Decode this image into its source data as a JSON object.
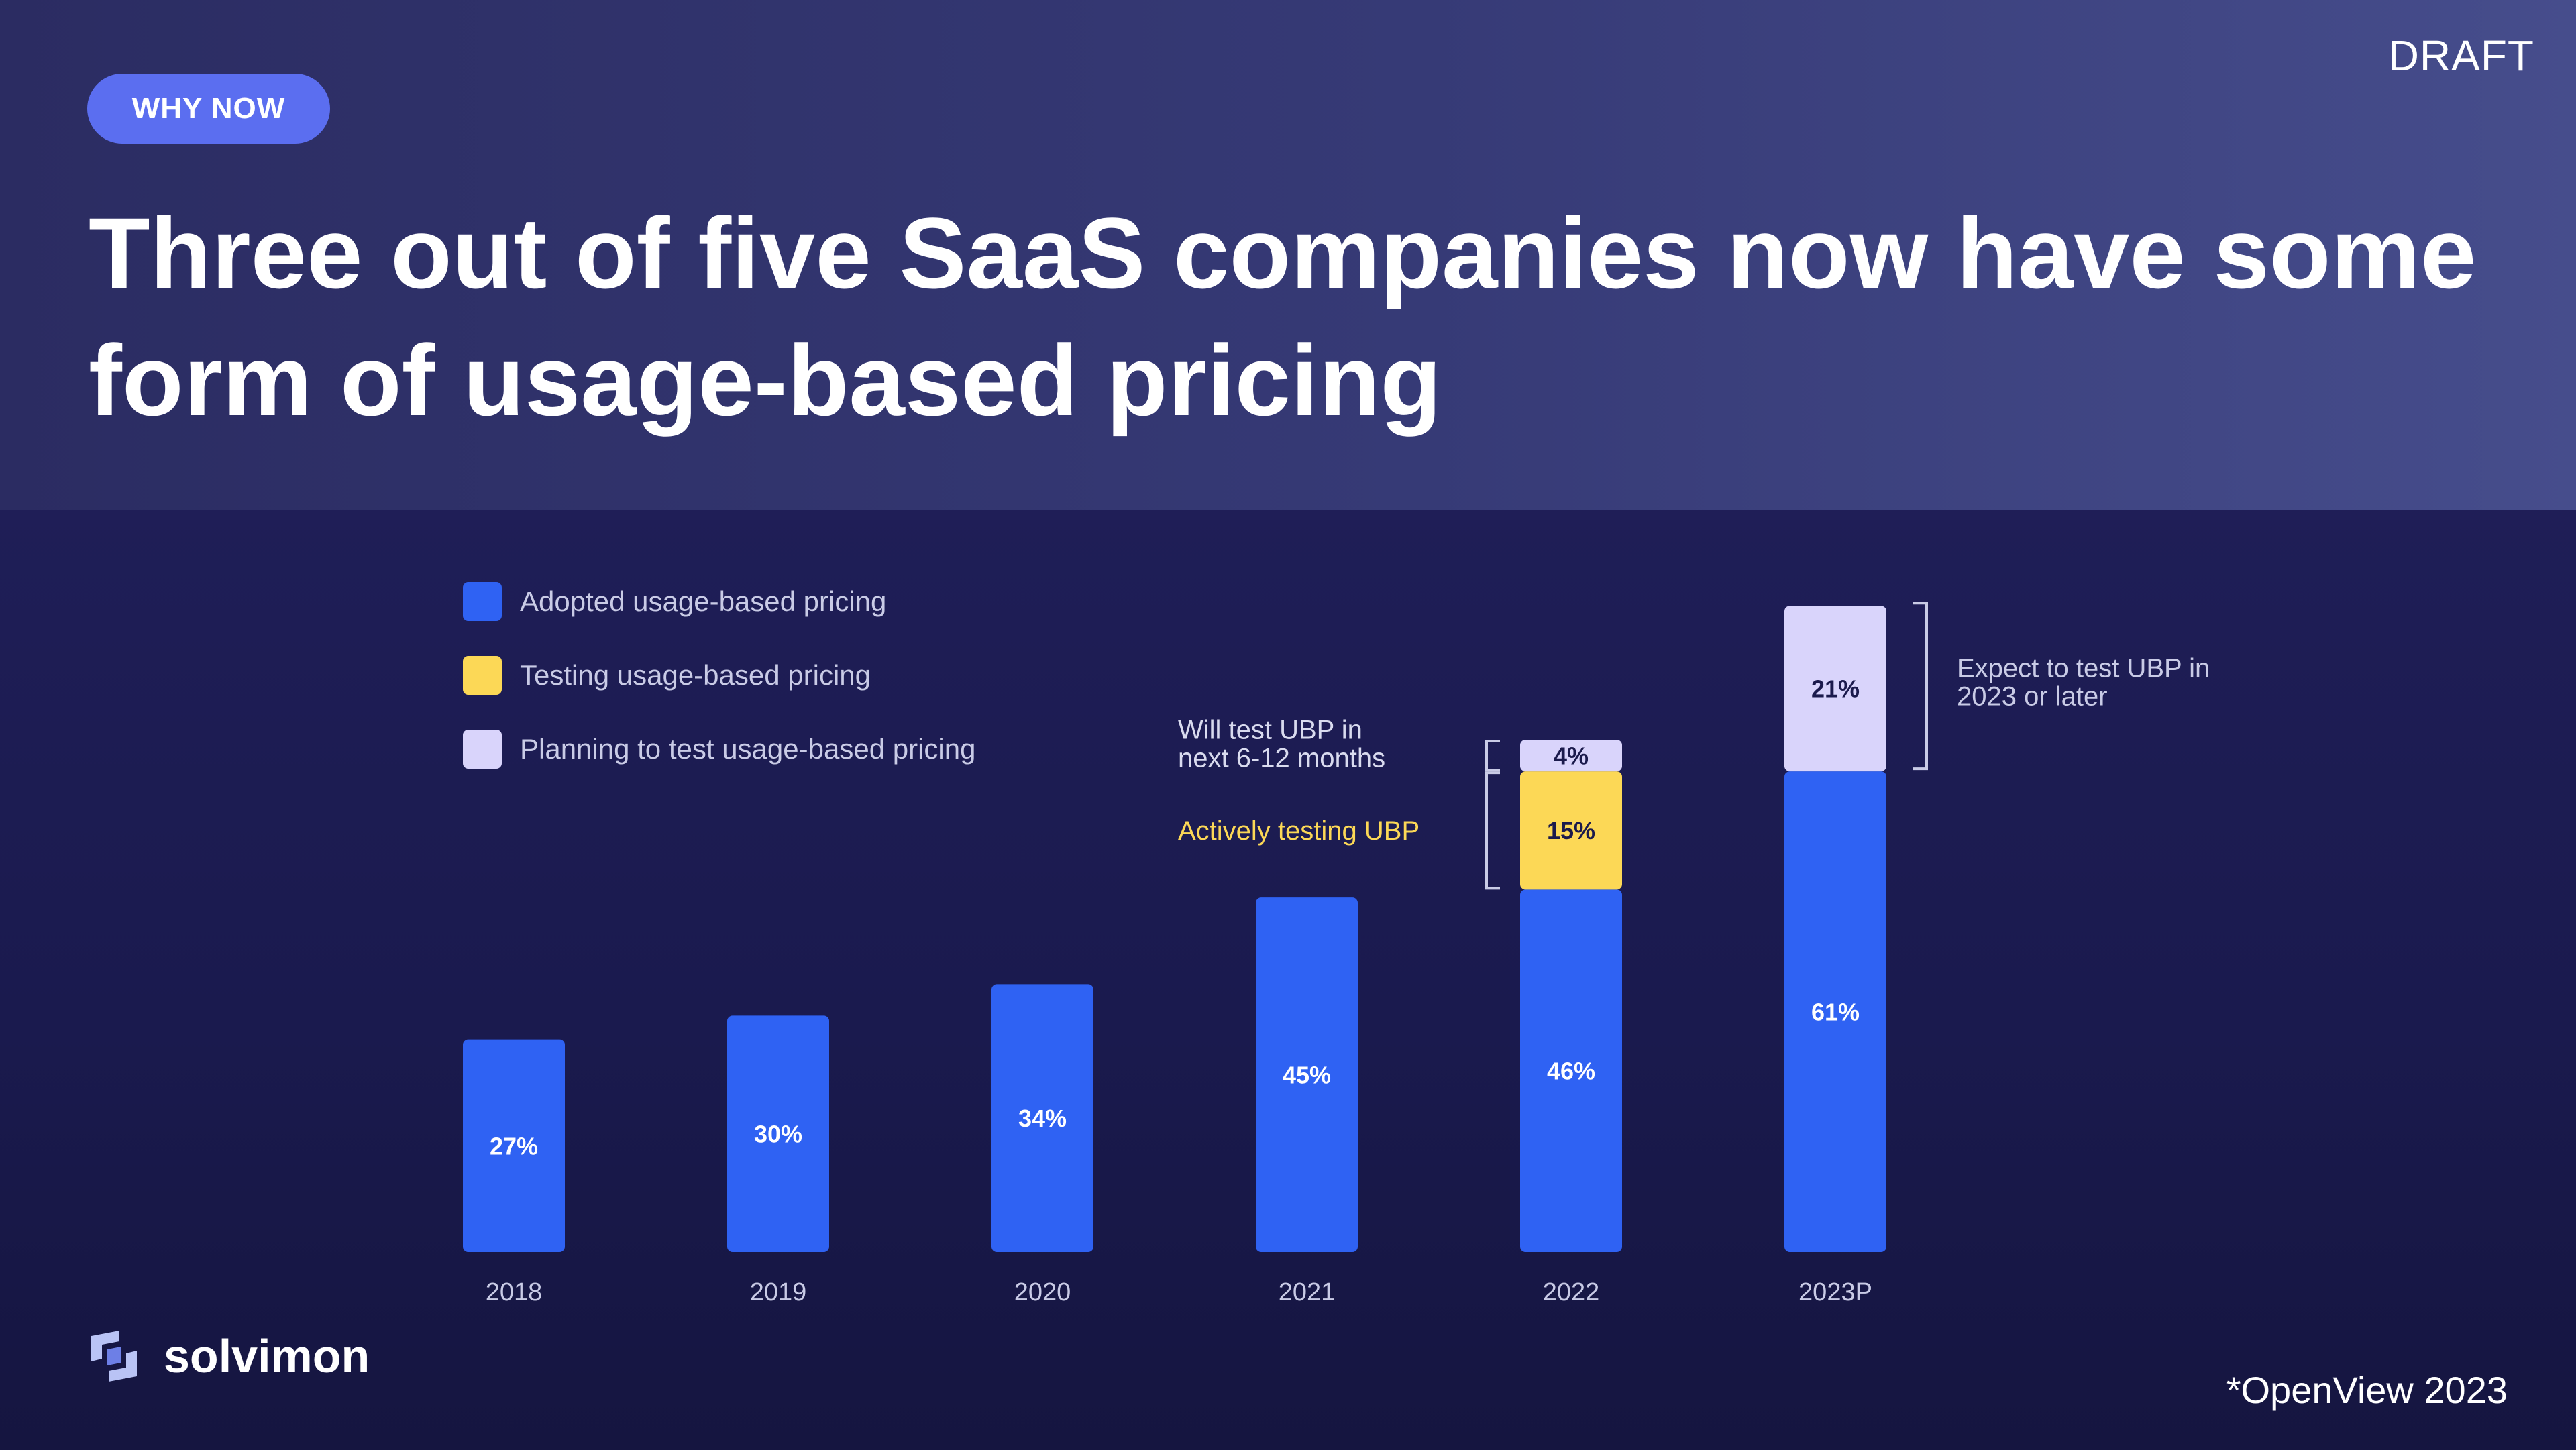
{
  "header": {
    "badge": "WHY NOW",
    "draft_label": "DRAFT",
    "title": "Three out of five SaaS companies now have some form of usage-based pricing"
  },
  "footer": {
    "logo_text": "solvimon",
    "source": "*OpenView 2023"
  },
  "colors": {
    "adopted": "#2f62f3",
    "testing": "#fcd856",
    "planning": "#d9d4fb"
  },
  "chart_data": {
    "type": "bar",
    "stacked": true,
    "categories": [
      "2018",
      "2019",
      "2020",
      "2021",
      "2022",
      "2023P"
    ],
    "series": [
      {
        "name": "Adopted usage-based pricing",
        "color": "#2f62f3",
        "values": [
          27,
          30,
          34,
          45,
          46,
          61
        ]
      },
      {
        "name": "Testing usage-based pricing",
        "color": "#fcd856",
        "values": [
          0,
          0,
          0,
          0,
          15,
          0
        ]
      },
      {
        "name": "Planning to test usage-based pricing",
        "color": "#d9d4fb",
        "values": [
          0,
          0,
          0,
          0,
          4,
          21
        ]
      }
    ],
    "data_labels": [
      [
        "27%",
        "30%",
        "34%",
        "45%",
        "46%",
        "61%"
      ],
      [
        "",
        "",
        "",
        "",
        "15%",
        ""
      ],
      [
        "",
        "",
        "",
        "",
        "4%",
        "21%"
      ]
    ],
    "annotations": [
      {
        "text": "Will test UBP in next 6-12 months",
        "category": "2022",
        "series": "Planning to test usage-based pricing"
      },
      {
        "text": "Actively testing UBP",
        "category": "2022",
        "series": "Testing usage-based pricing"
      },
      {
        "text": "Expect to test UBP in 2023 or later",
        "category": "2023P",
        "series": "Planning to test usage-based pricing"
      }
    ],
    "ylim": [
      0,
      85
    ],
    "legend": "top-left",
    "grid": false
  }
}
